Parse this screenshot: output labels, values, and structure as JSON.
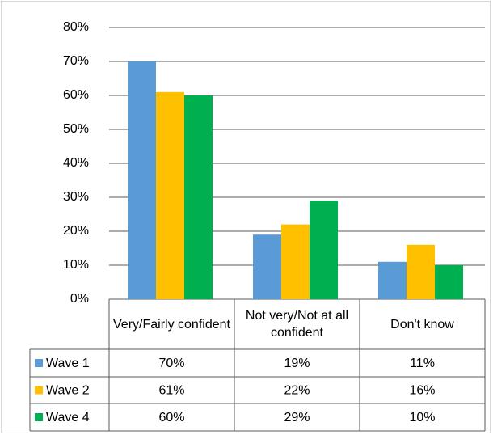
{
  "chart_data": {
    "type": "bar",
    "categories": [
      "Very/Fairly confident",
      "Not very/Not at all confident",
      "Don't know"
    ],
    "series": [
      {
        "name": "Wave 1",
        "color": "#5b9bd5",
        "values": [
          70,
          19,
          11
        ],
        "value_labels": [
          "70%",
          "19%",
          "11%"
        ]
      },
      {
        "name": "Wave 2",
        "color": "#ffc000",
        "values": [
          61,
          22,
          16
        ],
        "value_labels": [
          "61%",
          "22%",
          "16%"
        ]
      },
      {
        "name": "Wave 4",
        "color": "#00b050",
        "values": [
          60,
          29,
          10
        ],
        "value_labels": [
          "60%",
          "29%",
          "10%"
        ]
      }
    ],
    "ylim": [
      0,
      80
    ],
    "yticks": [
      {
        "value": 0,
        "label": "0%"
      },
      {
        "value": 10,
        "label": "10%"
      },
      {
        "value": 20,
        "label": "20%"
      },
      {
        "value": 30,
        "label": "30%"
      },
      {
        "value": 40,
        "label": "40%"
      },
      {
        "value": 50,
        "label": "50%"
      },
      {
        "value": 60,
        "label": "60%"
      },
      {
        "value": 70,
        "label": "70%"
      },
      {
        "value": 80,
        "label": "80%"
      }
    ],
    "grid": true,
    "data_table": true
  }
}
